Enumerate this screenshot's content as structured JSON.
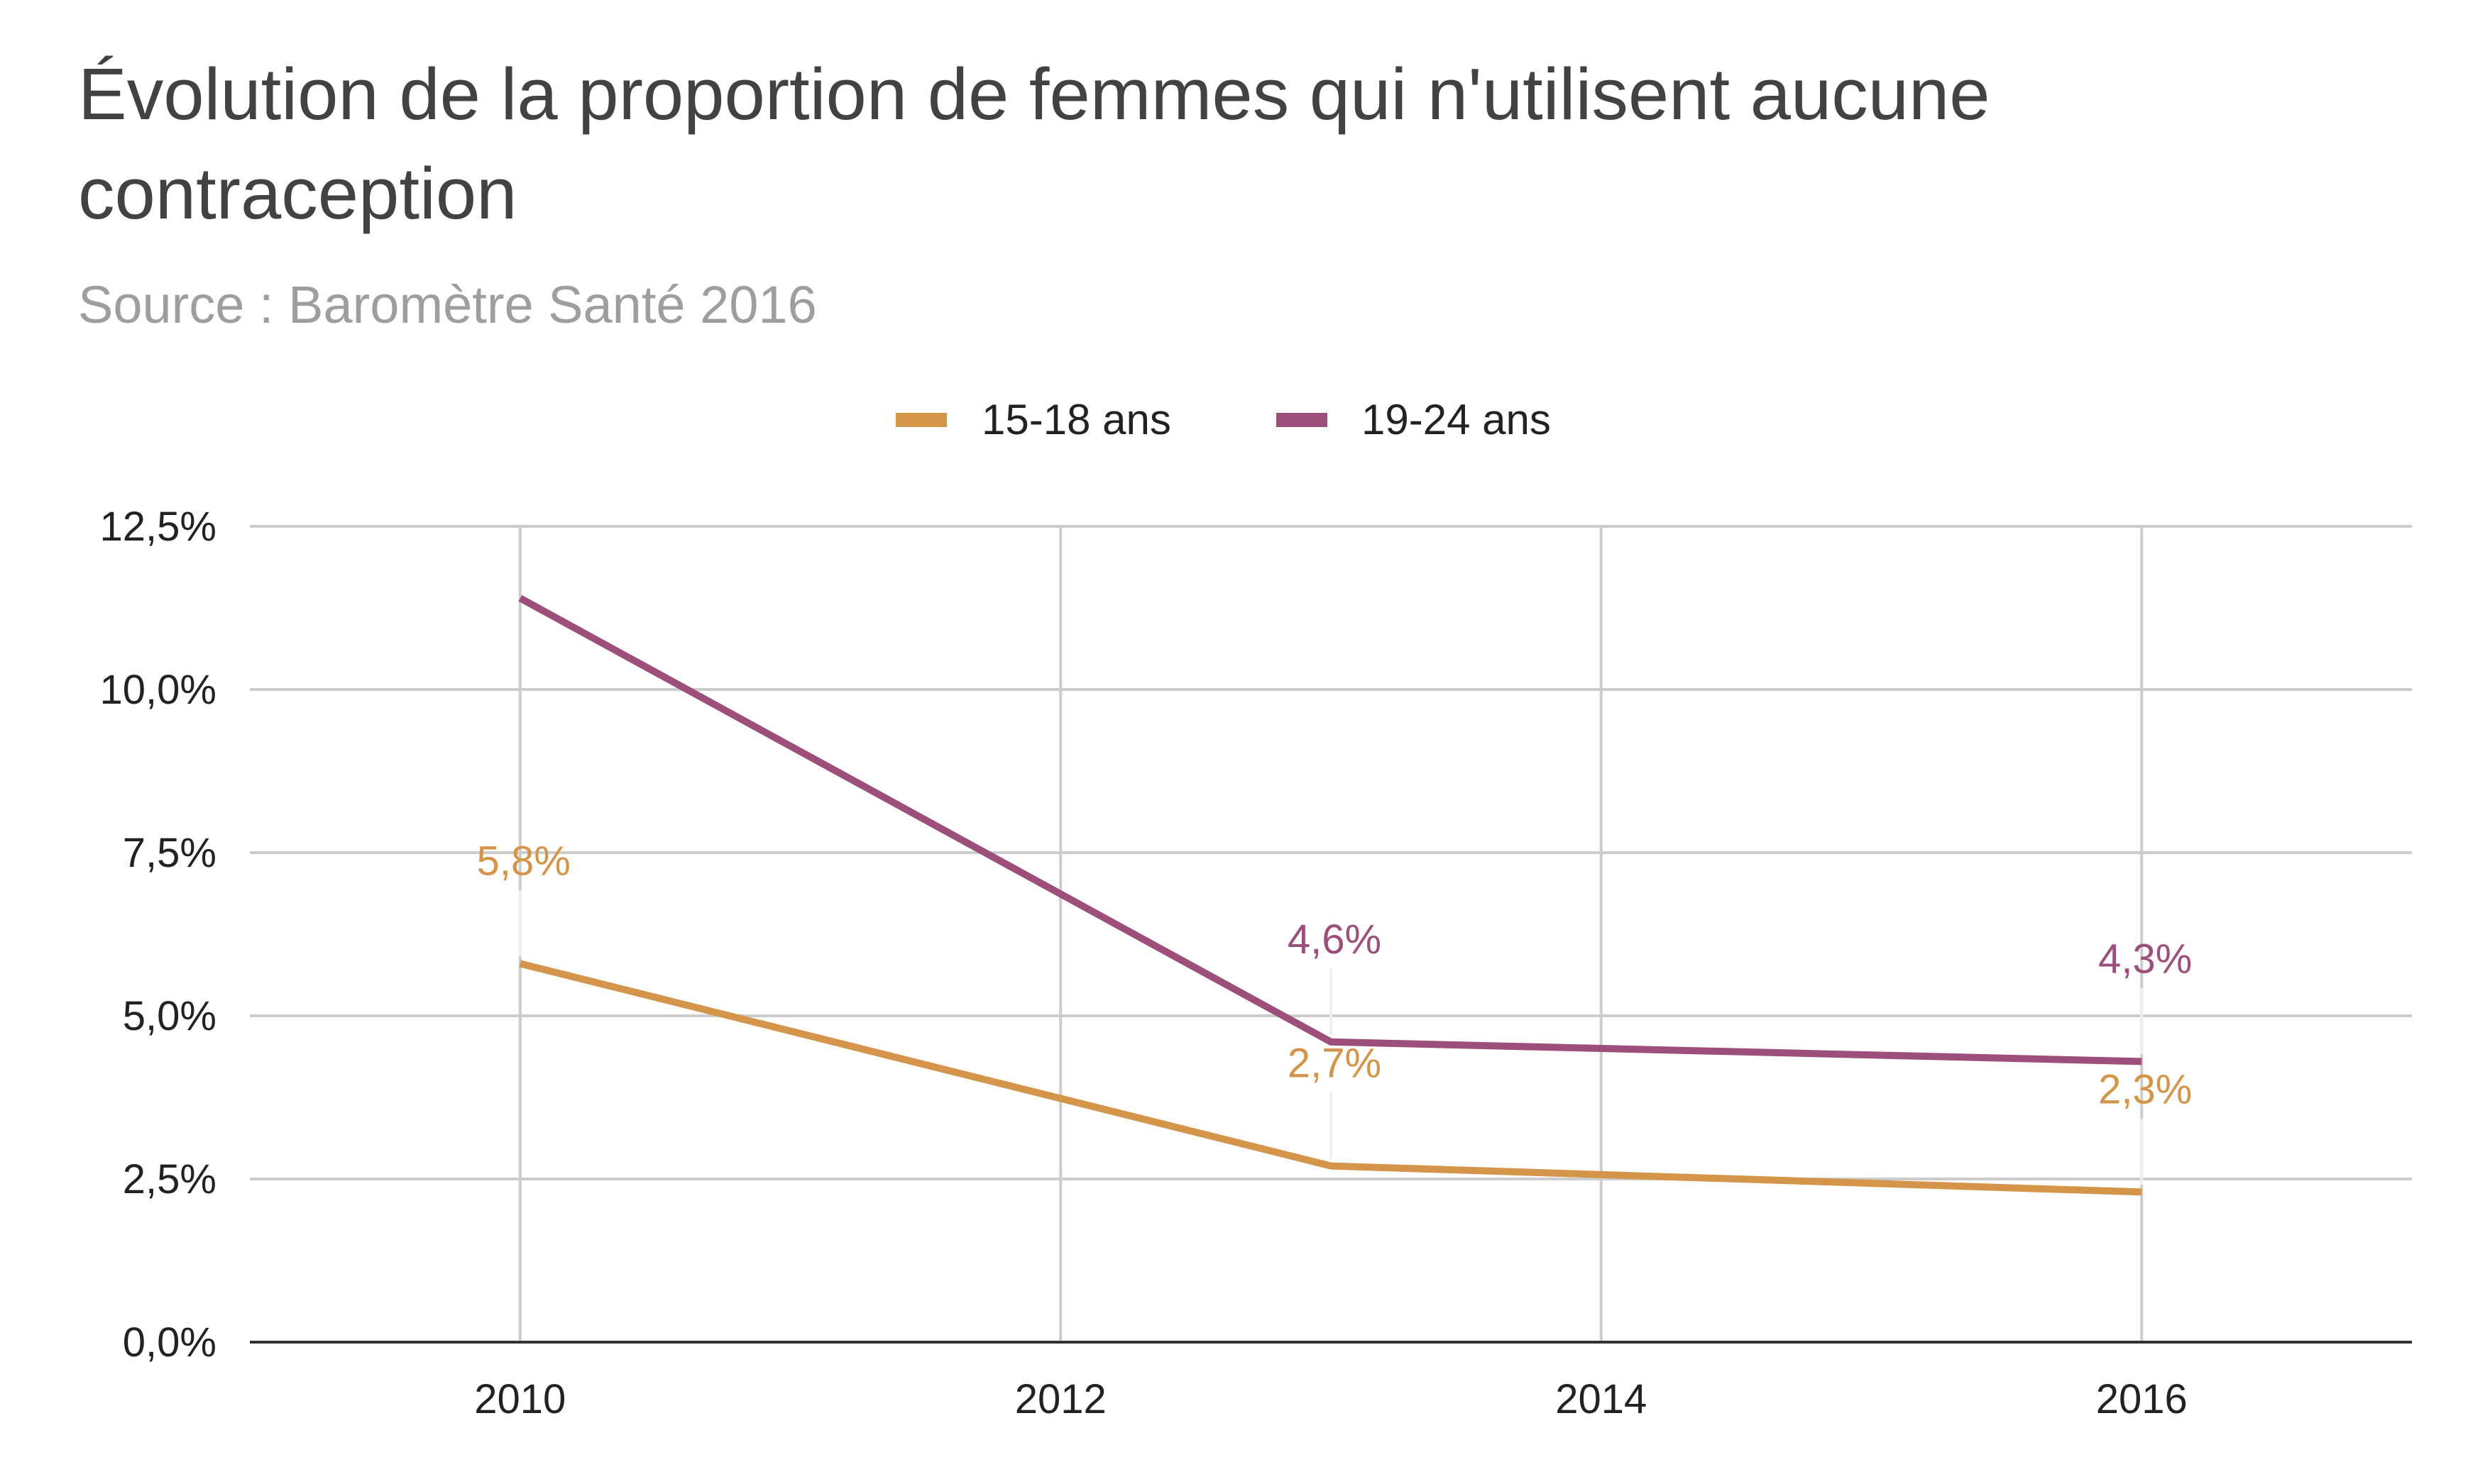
{
  "chart_data": {
    "type": "line",
    "title_lines": [
      "Évolution de la proportion de femmes qui n'utilisent aucune",
      "contraception"
    ],
    "subtitle": "Source : Baromètre Santé 2016",
    "x_ticks": [
      "2010",
      "2012",
      "2014",
      "2016"
    ],
    "y_ticks": [
      "0,0%",
      "2,5%",
      "5,0%",
      "7,5%",
      "10,0%",
      "12,5%"
    ],
    "xlim": [
      2009,
      2017
    ],
    "ylim": [
      0,
      12.5
    ],
    "grid": true,
    "legend_position": "top",
    "series": [
      {
        "name": "15-18 ans",
        "color": "#d4944a",
        "x": [
          2010,
          2013,
          2016
        ],
        "y": [
          5.8,
          2.7,
          2.3
        ],
        "labels": [
          "5,8%",
          "2,7%",
          "2,3%"
        ],
        "label_placement": [
          "above",
          "above",
          "above"
        ]
      },
      {
        "name": "19-24 ans",
        "color": "#9b4f7a",
        "x": [
          2010,
          2013,
          2016
        ],
        "y": [
          11.4,
          4.6,
          4.3
        ],
        "labels": [
          "",
          "4,6%",
          "4,3%"
        ],
        "label_placement": [
          "above",
          "above",
          "above"
        ]
      }
    ]
  }
}
